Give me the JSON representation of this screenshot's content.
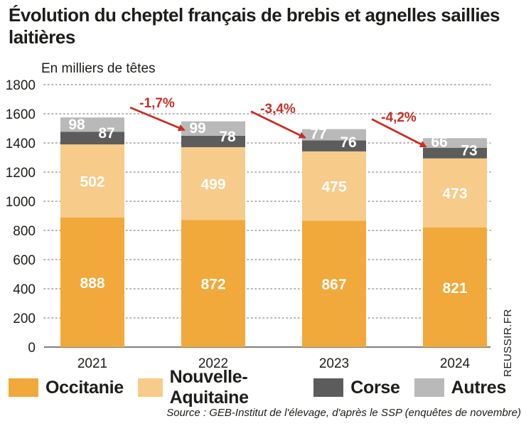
{
  "title": "Évolution du cheptel français de brebis et agnelles saillies laitières",
  "unit_label": "En milliers de têtes",
  "source": "Source : GEB-Institut de l'élevage, d'après le SSP (enquêtes de novembre)",
  "credit": "REUSSIR.FR",
  "colors": {
    "occitanie": "#f0a93a",
    "nouvelle_aquitaine": "#f7cb8a",
    "corse": "#5c5c5c",
    "autres": "#b9b9b9",
    "arrow": "#c43127"
  },
  "legend": [
    {
      "label": "Occitanie",
      "color": "#f0a93a"
    },
    {
      "label": "Nouvelle-Aquitaine",
      "color": "#f7cb8a"
    },
    {
      "label": "Corse",
      "color": "#5c5c5c"
    },
    {
      "label": "Autres",
      "color": "#b9b9b9"
    }
  ],
  "chart_data": {
    "type": "bar",
    "stacked": true,
    "categories": [
      "2021",
      "2022",
      "2023",
      "2024"
    ],
    "series": [
      {
        "name": "Occitanie",
        "values": [
          888,
          872,
          867,
          821
        ]
      },
      {
        "name": "Nouvelle-Aquitaine",
        "values": [
          502,
          499,
          475,
          473
        ]
      },
      {
        "name": "Corse",
        "values": [
          87,
          78,
          76,
          73
        ]
      },
      {
        "name": "Autres",
        "values": [
          98,
          99,
          77,
          66
        ]
      }
    ],
    "yticks": [
      "0",
      "200",
      "400",
      "600",
      "800",
      "1000",
      "1200",
      "1400",
      "1600",
      "1800"
    ],
    "ylim": [
      0,
      1800
    ],
    "grid": true,
    "changes": [
      "-1,7%",
      "-3,4%",
      "-4,2%"
    ]
  }
}
